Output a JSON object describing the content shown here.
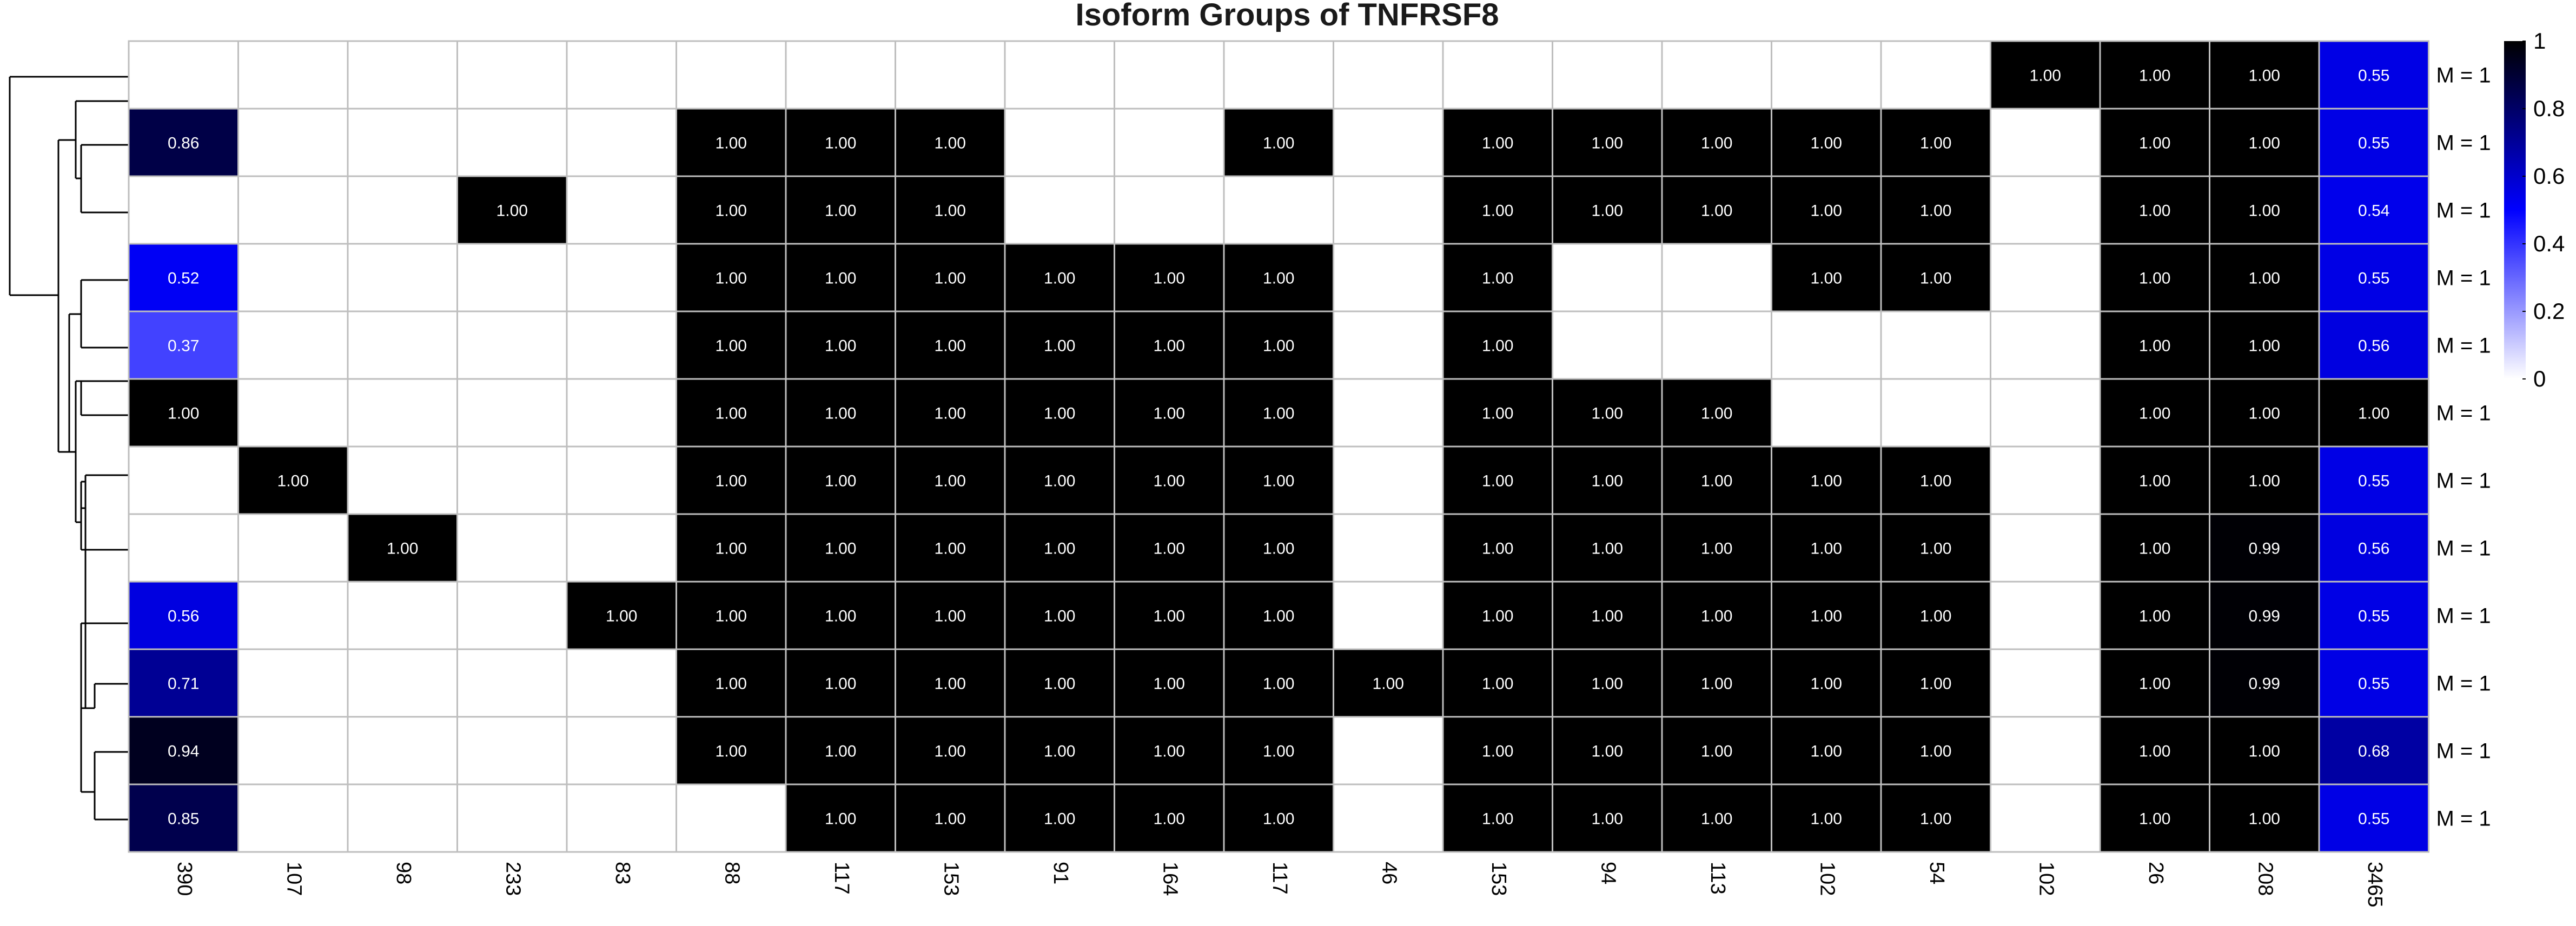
{
  "chart_data": {
    "type": "heatmap",
    "title": "Isoform Groups of TNFRSF8",
    "columns": [
      "390",
      "107",
      "98",
      "233",
      "83",
      "88",
      "117",
      "153",
      "91",
      "164",
      "117",
      "46",
      "153",
      "94",
      "113",
      "102",
      "54",
      "102",
      "26",
      "208",
      "3465"
    ],
    "rows": [
      "M = 1",
      "M = 1",
      "M = 1",
      "M = 1",
      "M = 1",
      "M = 1",
      "M = 1",
      "M = 1",
      "M = 1",
      "M = 1",
      "M = 1",
      "M = 1"
    ],
    "values": [
      [
        null,
        null,
        null,
        null,
        null,
        null,
        null,
        null,
        null,
        null,
        null,
        null,
        null,
        null,
        null,
        null,
        null,
        1.0,
        1.0,
        1.0,
        0.55
      ],
      [
        0.86,
        null,
        null,
        null,
        null,
        1.0,
        1.0,
        1.0,
        null,
        null,
        1.0,
        null,
        1.0,
        1.0,
        1.0,
        1.0,
        1.0,
        null,
        1.0,
        1.0,
        0.55
      ],
      [
        null,
        null,
        null,
        1.0,
        null,
        1.0,
        1.0,
        1.0,
        null,
        null,
        null,
        null,
        1.0,
        1.0,
        1.0,
        1.0,
        1.0,
        null,
        1.0,
        1.0,
        0.54
      ],
      [
        0.52,
        null,
        null,
        null,
        null,
        1.0,
        1.0,
        1.0,
        1.0,
        1.0,
        1.0,
        null,
        1.0,
        null,
        null,
        1.0,
        1.0,
        null,
        1.0,
        1.0,
        0.55
      ],
      [
        0.37,
        null,
        null,
        null,
        null,
        1.0,
        1.0,
        1.0,
        1.0,
        1.0,
        1.0,
        null,
        1.0,
        null,
        null,
        null,
        null,
        null,
        1.0,
        1.0,
        0.56
      ],
      [
        1.0,
        null,
        null,
        null,
        null,
        1.0,
        1.0,
        1.0,
        1.0,
        1.0,
        1.0,
        null,
        1.0,
        1.0,
        1.0,
        null,
        null,
        null,
        1.0,
        1.0,
        1.0
      ],
      [
        null,
        1.0,
        null,
        null,
        null,
        1.0,
        1.0,
        1.0,
        1.0,
        1.0,
        1.0,
        null,
        1.0,
        1.0,
        1.0,
        1.0,
        1.0,
        null,
        1.0,
        1.0,
        0.55
      ],
      [
        null,
        null,
        1.0,
        null,
        null,
        1.0,
        1.0,
        1.0,
        1.0,
        1.0,
        1.0,
        null,
        1.0,
        1.0,
        1.0,
        1.0,
        1.0,
        null,
        1.0,
        0.99,
        0.56
      ],
      [
        0.56,
        null,
        null,
        null,
        1.0,
        1.0,
        1.0,
        1.0,
        1.0,
        1.0,
        1.0,
        null,
        1.0,
        1.0,
        1.0,
        1.0,
        1.0,
        null,
        1.0,
        0.99,
        0.55
      ],
      [
        0.71,
        null,
        null,
        null,
        null,
        1.0,
        1.0,
        1.0,
        1.0,
        1.0,
        1.0,
        1.0,
        1.0,
        1.0,
        1.0,
        1.0,
        1.0,
        null,
        1.0,
        0.99,
        0.55
      ],
      [
        0.94,
        null,
        null,
        null,
        null,
        1.0,
        1.0,
        1.0,
        1.0,
        1.0,
        1.0,
        null,
        1.0,
        1.0,
        1.0,
        1.0,
        1.0,
        null,
        1.0,
        1.0,
        0.68
      ],
      [
        0.85,
        null,
        null,
        null,
        null,
        null,
        1.0,
        1.0,
        1.0,
        1.0,
        1.0,
        null,
        1.0,
        1.0,
        1.0,
        1.0,
        1.0,
        null,
        1.0,
        1.0,
        0.55
      ]
    ],
    "color_scale": {
      "min": 0,
      "max": 1,
      "stops": [
        {
          "value": 0,
          "color": "#ffffff"
        },
        {
          "value": 0.5,
          "color": "#0000ff"
        },
        {
          "value": 1,
          "color": "#000000"
        }
      ],
      "ticks": [
        "0",
        "0.2",
        "0.4",
        "0.6",
        "0.8",
        "1"
      ]
    },
    "grid_color": "#bebebe",
    "row_dendrogram": true,
    "legend_position": "right"
  }
}
